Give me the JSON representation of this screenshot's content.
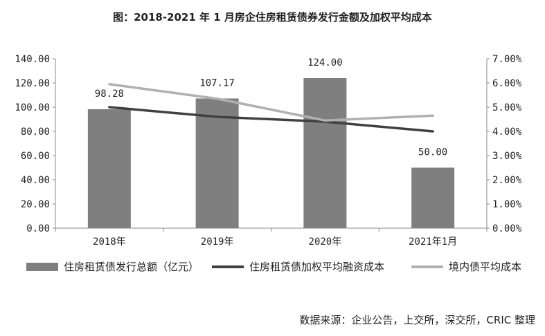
{
  "title": "图：2018-2021 年 1 月房企住房租赁债券发行金额及加权平均成本",
  "source": "数据来源：企业公告，上交所，深交所，CRIC 整理",
  "chart_data": {
    "type": "bar",
    "categories": [
      "2018年",
      "2019年",
      "2020年",
      "2021年1月"
    ],
    "series": [
      {
        "name": "住房租赁债发行总额（亿元）",
        "kind": "bar",
        "axis": "left",
        "values": [
          98.28,
          107.17,
          124.0,
          50.0
        ],
        "labels": [
          "98.28",
          "107.17",
          "124.00",
          "50.00"
        ],
        "color": "#7f7f7f"
      },
      {
        "name": "住房租赁债加权平均融资成本",
        "kind": "line",
        "axis": "right",
        "values": [
          5.0,
          4.6,
          4.4,
          4.0
        ],
        "color": "#404040"
      },
      {
        "name": "境内债平均成本",
        "kind": "line",
        "axis": "right",
        "values": [
          5.95,
          5.35,
          4.45,
          4.65
        ],
        "color": "#b0b0b0"
      }
    ],
    "left_axis": {
      "ylim": [
        0,
        140
      ],
      "ticks": [
        "0.00",
        "20.00",
        "40.00",
        "60.00",
        "80.00",
        "100.00",
        "120.00",
        "140.00"
      ]
    },
    "right_axis": {
      "ylim": [
        0,
        7
      ],
      "ticks": [
        "0.00%",
        "1.00%",
        "2.00%",
        "3.00%",
        "4.00%",
        "5.00%",
        "6.00%",
        "7.00%"
      ]
    },
    "grid": false,
    "legend_position": "bottom"
  }
}
